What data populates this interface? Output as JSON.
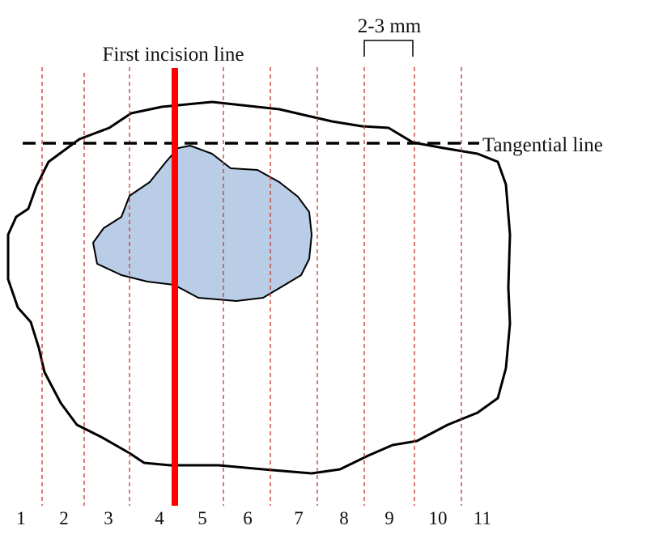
{
  "labels": {
    "first_incision": "First incision line",
    "tangential": "Tangential line",
    "spacing": "2-3 mm"
  },
  "slices": [
    "1",
    "2",
    "3",
    "4",
    "5",
    "6",
    "7",
    "8",
    "9",
    "10",
    "11"
  ],
  "colors": {
    "outline": "#000000",
    "lesion_fill": "#b9cde6",
    "guide_line": "#c0392b",
    "incision_line": "#ff0000",
    "background": "#ffffff"
  }
}
